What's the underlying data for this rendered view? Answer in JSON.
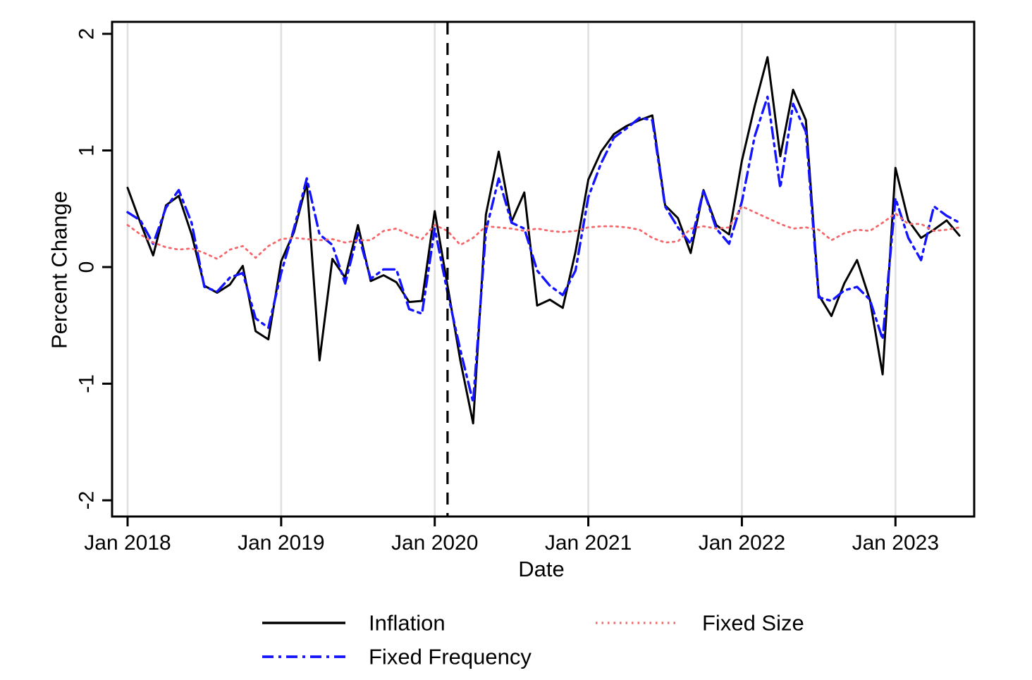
{
  "chart_data": {
    "type": "line",
    "title": "",
    "xlabel": "Date",
    "ylabel": "Percent Change",
    "grid": "vertical-gridlines-at-january",
    "legend_position": "bottom",
    "ylim": [
      -2.15,
      2.1
    ],
    "y_ticks": [
      {
        "value": 2,
        "label": "2"
      },
      {
        "value": 1,
        "label": "1"
      },
      {
        "value": 0,
        "label": "0"
      },
      {
        "value": -1,
        "label": "-1"
      },
      {
        "value": -2,
        "label": "-2"
      }
    ],
    "x_ticks": [
      {
        "month_index": 0,
        "label": "Jan 2018"
      },
      {
        "month_index": 12,
        "label": "Jan 2019"
      },
      {
        "month_index": 24,
        "label": "Jan 2020"
      },
      {
        "month_index": 36,
        "label": "Jan 2021"
      },
      {
        "month_index": 48,
        "label": "Jan 2022"
      },
      {
        "month_index": 60,
        "label": "Jan 2023"
      }
    ],
    "reference_line": {
      "label": "Feb 2020",
      "month_index": 25,
      "style": "dashed",
      "color": "#000000"
    },
    "x": [
      "Jan 2018",
      "Feb 2018",
      "Mar 2018",
      "Apr 2018",
      "May 2018",
      "Jun 2018",
      "Jul 2018",
      "Aug 2018",
      "Sep 2018",
      "Oct 2018",
      "Nov 2018",
      "Dec 2018",
      "Jan 2019",
      "Feb 2019",
      "Mar 2019",
      "Apr 2019",
      "May 2019",
      "Jun 2019",
      "Jul 2019",
      "Aug 2019",
      "Sep 2019",
      "Oct 2019",
      "Nov 2019",
      "Dec 2019",
      "Jan 2020",
      "Feb 2020",
      "Mar 2020",
      "Apr 2020",
      "May 2020",
      "Jun 2020",
      "Jul 2020",
      "Aug 2020",
      "Sep 2020",
      "Oct 2020",
      "Nov 2020",
      "Dec 2020",
      "Jan 2021",
      "Feb 2021",
      "Mar 2021",
      "Apr 2021",
      "May 2021",
      "Jun 2021",
      "Jul 2021",
      "Aug 2021",
      "Sep 2021",
      "Oct 2021",
      "Nov 2021",
      "Dec 2021",
      "Jan 2022",
      "Feb 2022",
      "Mar 2022",
      "Apr 2022",
      "May 2022",
      "Jun 2022",
      "Jul 2022",
      "Aug 2022",
      "Sep 2022",
      "Oct 2022",
      "Nov 2022",
      "Dec 2022",
      "Jan 2023",
      "Feb 2023",
      "Mar 2023",
      "Apr 2023",
      "May 2023",
      "Jun 2023"
    ],
    "series": [
      {
        "name": "Inflation",
        "color": "#000000",
        "style": "solid",
        "width": 3,
        "values": [
          0.68,
          0.38,
          0.1,
          0.53,
          0.61,
          0.28,
          -0.16,
          -0.22,
          -0.15,
          0.01,
          -0.55,
          -0.62,
          0.05,
          0.3,
          0.72,
          -0.8,
          0.07,
          -0.09,
          0.36,
          -0.12,
          -0.07,
          -0.13,
          -0.3,
          -0.29,
          0.48,
          -0.16,
          -0.8,
          -1.34,
          0.45,
          0.99,
          0.39,
          0.64,
          -0.33,
          -0.28,
          -0.35,
          0.13,
          0.75,
          0.99,
          1.14,
          1.21,
          1.26,
          1.3,
          0.53,
          0.42,
          0.12,
          0.66,
          0.36,
          0.28,
          0.91,
          1.38,
          1.8,
          0.95,
          1.52,
          1.26,
          -0.24,
          -0.42,
          -0.14,
          0.06,
          -0.28,
          -0.92,
          0.85,
          0.4,
          0.25,
          0.32,
          0.4,
          0.27
        ]
      },
      {
        "name": "Fixed Frequency",
        "color": "#1414ff",
        "style": "dash-dot",
        "width": 3.4,
        "values": [
          0.47,
          0.4,
          0.2,
          0.51,
          0.66,
          0.38,
          -0.17,
          -0.21,
          -0.09,
          -0.05,
          -0.44,
          -0.52,
          -0.05,
          0.33,
          0.76,
          0.28,
          0.19,
          -0.14,
          0.29,
          -0.1,
          -0.02,
          -0.02,
          -0.36,
          -0.4,
          0.33,
          -0.22,
          -0.71,
          -1.16,
          0.31,
          0.76,
          0.38,
          0.33,
          -0.03,
          -0.16,
          -0.24,
          -0.03,
          0.6,
          0.89,
          1.11,
          1.19,
          1.28,
          1.26,
          0.52,
          0.34,
          0.2,
          0.66,
          0.33,
          0.2,
          0.56,
          1.12,
          1.46,
          0.68,
          1.4,
          1.16,
          -0.26,
          -0.29,
          -0.2,
          -0.17,
          -0.28,
          -0.62,
          0.59,
          0.25,
          0.06,
          0.52,
          0.44,
          0.38
        ]
      },
      {
        "name": "Fixed Size",
        "color": "#f4686c",
        "style": "dotted",
        "width": 2.8,
        "values": [
          0.36,
          0.28,
          0.21,
          0.17,
          0.15,
          0.16,
          0.12,
          0.07,
          0.15,
          0.18,
          0.08,
          0.18,
          0.24,
          0.25,
          0.24,
          0.23,
          0.24,
          0.21,
          0.23,
          0.23,
          0.31,
          0.33,
          0.28,
          0.24,
          0.36,
          0.31,
          0.19,
          0.25,
          0.35,
          0.34,
          0.33,
          0.31,
          0.33,
          0.31,
          0.3,
          0.31,
          0.34,
          0.35,
          0.35,
          0.34,
          0.32,
          0.25,
          0.21,
          0.22,
          0.33,
          0.35,
          0.33,
          0.34,
          0.52,
          0.47,
          0.42,
          0.37,
          0.33,
          0.34,
          0.32,
          0.23,
          0.29,
          0.32,
          0.31,
          0.38,
          0.46,
          0.37,
          0.37,
          0.31,
          0.32,
          0.34
        ]
      }
    ],
    "legend": {
      "items": [
        {
          "label": "Inflation"
        },
        {
          "label": "Fixed Size"
        },
        {
          "label": "Fixed Frequency"
        }
      ]
    }
  }
}
